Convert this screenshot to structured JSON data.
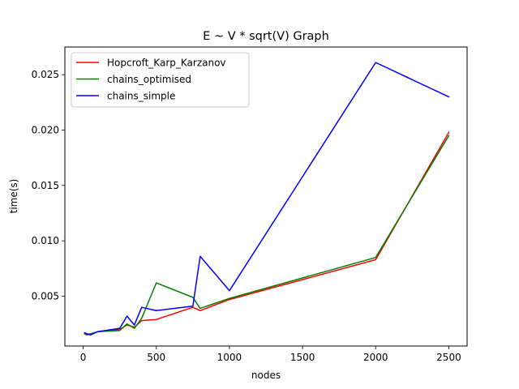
{
  "chart_data": {
    "type": "line",
    "title": "E ~ V * sqrt(V) Graph",
    "xlabel": "nodes",
    "ylabel": "time(s)",
    "xlim": [
      -125,
      2625
    ],
    "ylim": [
      0.0005,
      0.0275
    ],
    "xticks": [
      0,
      500,
      1000,
      1500,
      2000,
      2500
    ],
    "xtick_labels": [
      "0",
      "500",
      "1000",
      "1500",
      "2000",
      "2500"
    ],
    "yticks": [
      0.005,
      0.01,
      0.015,
      0.02,
      0.025
    ],
    "ytick_labels": [
      "0.005",
      "0.010",
      "0.015",
      "0.020",
      "0.025"
    ],
    "grid": false,
    "legend_position": "top-left",
    "series": [
      {
        "name": "Hopcroft_Karp_Karzanov",
        "color": "#ff0000",
        "x": [
          10,
          25,
          50,
          100,
          250,
          300,
          350,
          400,
          500,
          750,
          800,
          1000,
          2000,
          2500
        ],
        "y": [
          0.0016,
          0.0015,
          0.0016,
          0.0018,
          0.002,
          0.0024,
          0.0022,
          0.0028,
          0.0029,
          0.004,
          0.0037,
          0.0047,
          0.0083,
          0.0198
        ]
      },
      {
        "name": "chains_optimised",
        "color": "#008000",
        "x": [
          10,
          25,
          50,
          100,
          250,
          300,
          350,
          400,
          500,
          750,
          800,
          1000,
          2000,
          2500
        ],
        "y": [
          0.0016,
          0.0016,
          0.0016,
          0.0018,
          0.0019,
          0.0025,
          0.0021,
          0.003,
          0.0062,
          0.0049,
          0.0039,
          0.0048,
          0.0085,
          0.0195
        ]
      },
      {
        "name": "chains_simple",
        "color": "#0000ff",
        "x": [
          10,
          25,
          50,
          100,
          250,
          300,
          350,
          400,
          500,
          750,
          800,
          1000,
          2000,
          2500
        ],
        "y": [
          0.0017,
          0.0016,
          0.0015,
          0.0018,
          0.0021,
          0.0032,
          0.0024,
          0.004,
          0.0037,
          0.0041,
          0.0086,
          0.0055,
          0.0261,
          0.023
        ]
      }
    ]
  }
}
